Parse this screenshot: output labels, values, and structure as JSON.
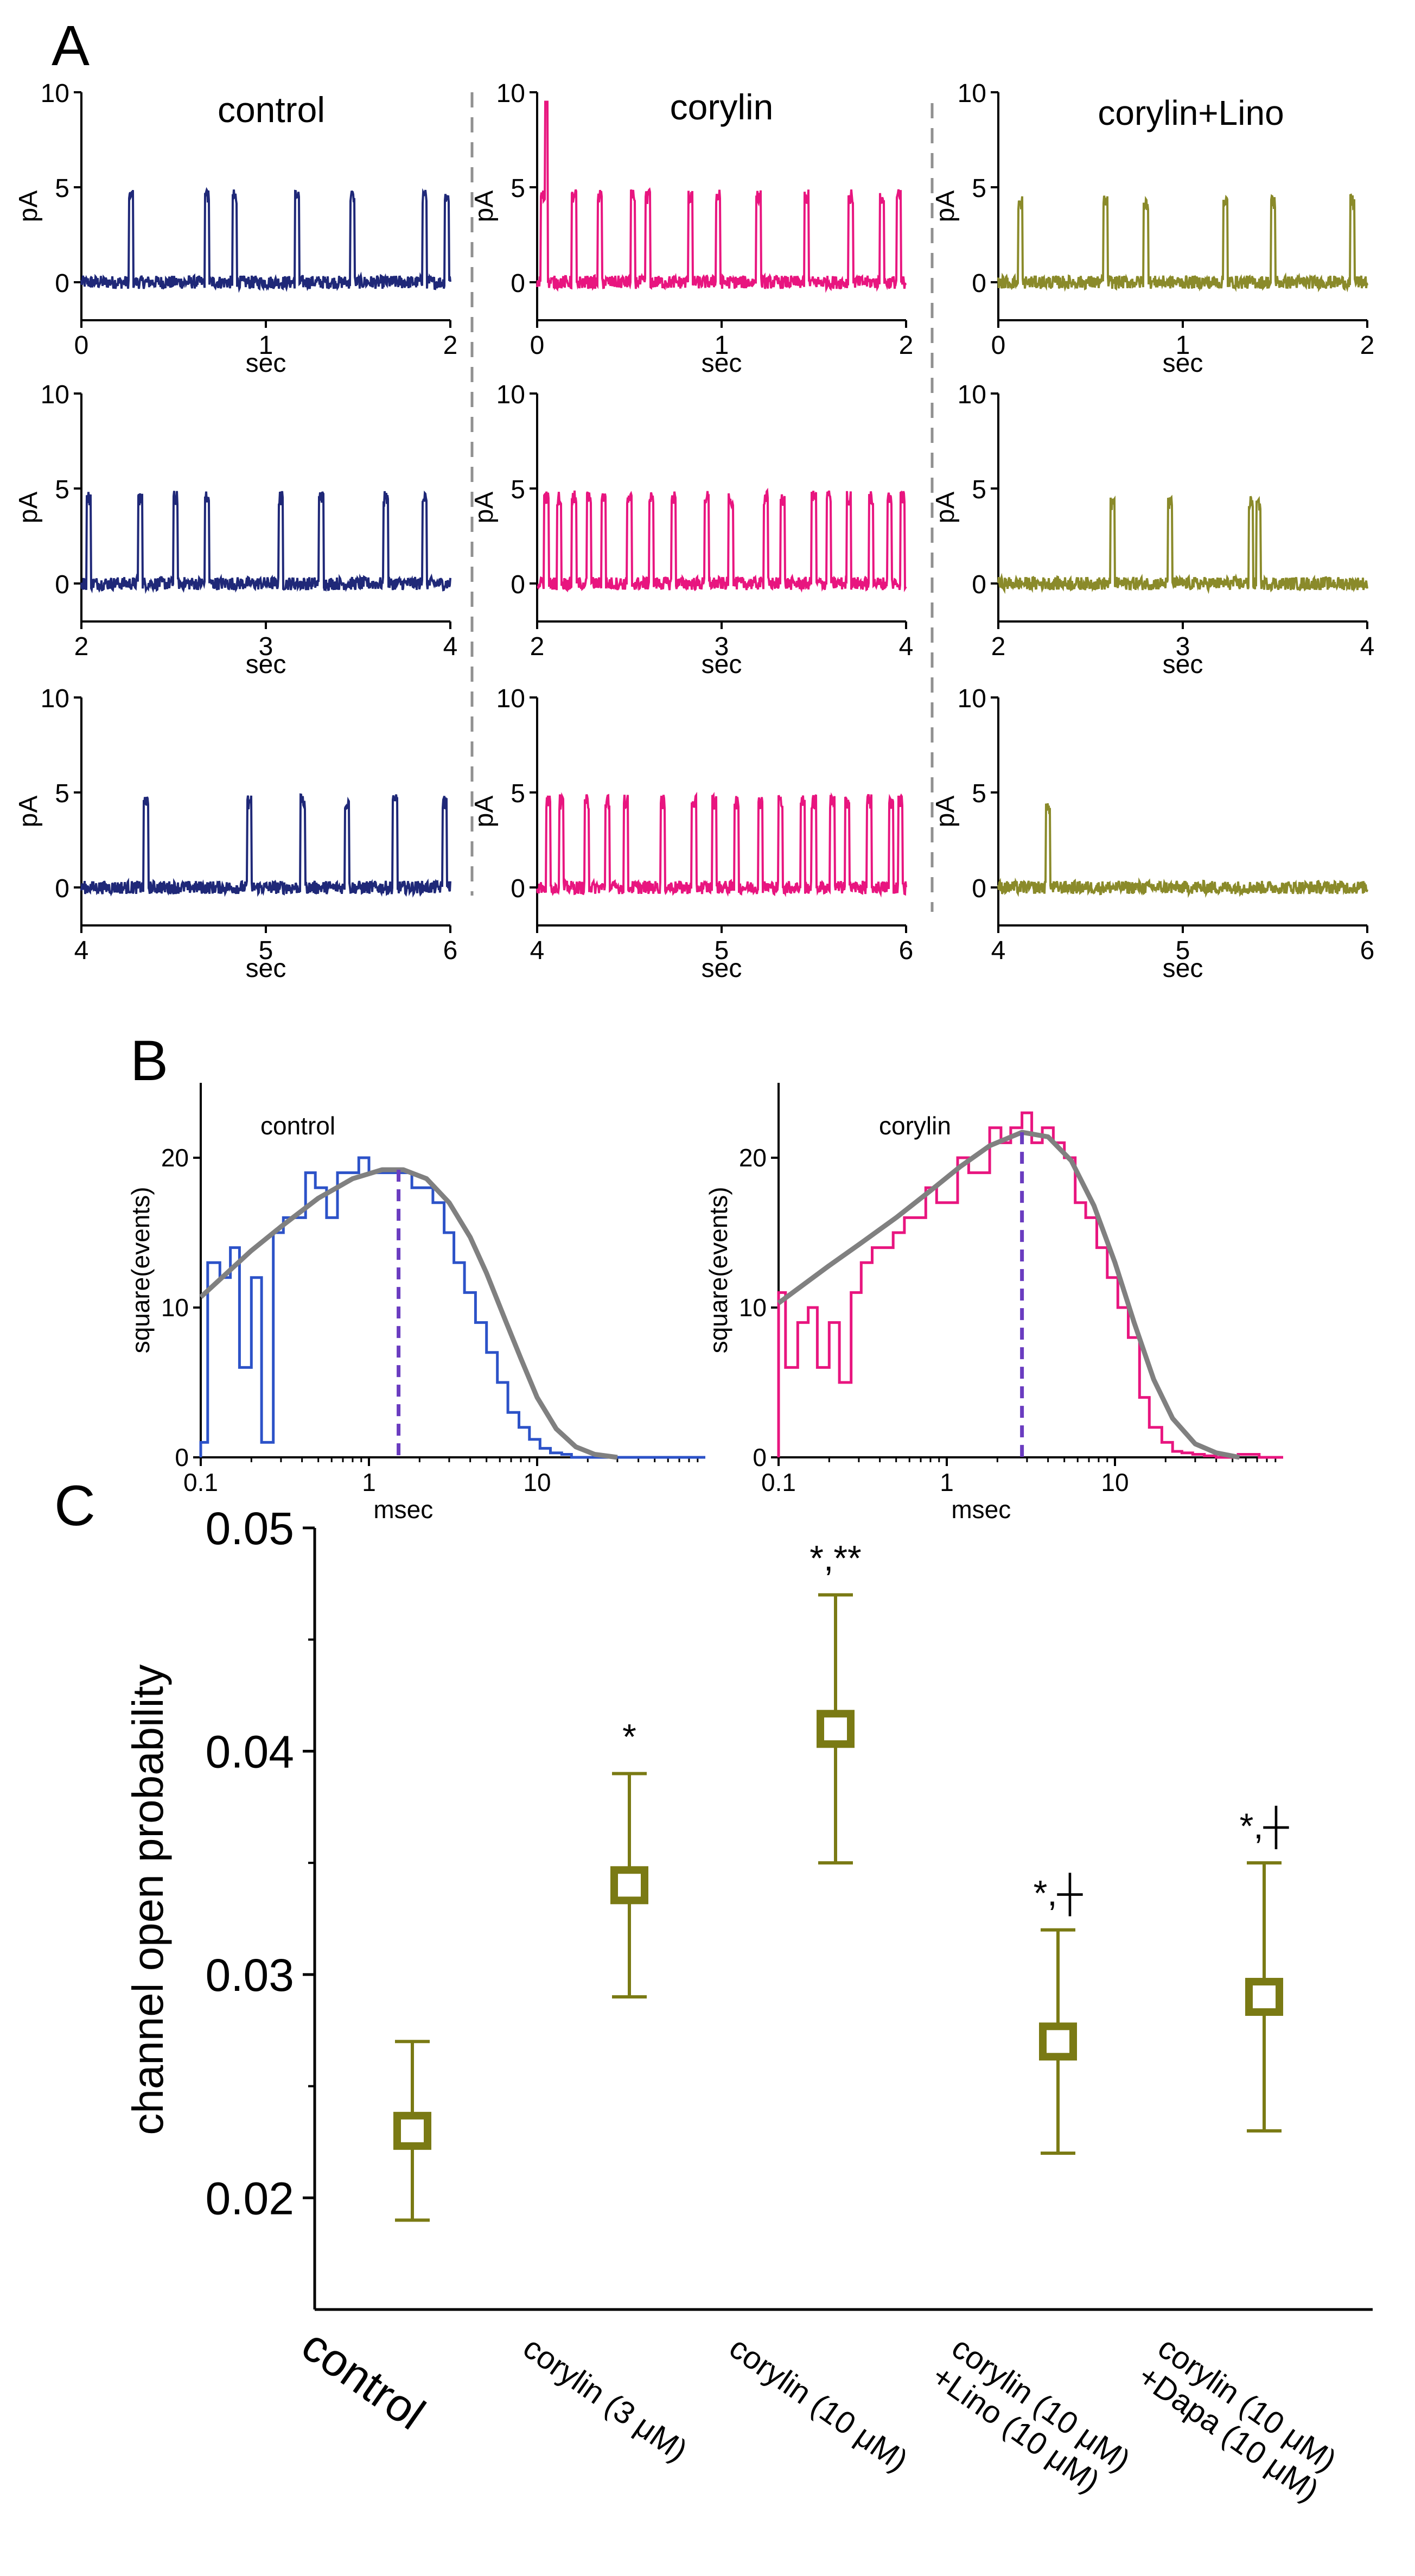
{
  "panel_labels": {
    "a": "A",
    "b": "B",
    "c": "C"
  },
  "colors": {
    "control": "#1f2878",
    "corylin": "#e8157f",
    "corylin_lino": "#8a8a2a",
    "hist_control": "#2c52c8",
    "hist_corylin": "#e8157f",
    "fit": "#808080",
    "median": "#6a3cc0",
    "box": "#7a7a14",
    "divider": "#909090"
  },
  "panel_a": {
    "column_titles": [
      "control",
      "corylin",
      "corylin+Lino"
    ],
    "ylabel": "pA",
    "xlabel": "sec",
    "yticks": [
      "0",
      "5",
      "10"
    ],
    "rows": [
      {
        "xticks": [
          "0",
          "1",
          "2"
        ]
      },
      {
        "xticks": [
          "2",
          "3",
          "4"
        ]
      },
      {
        "xticks": [
          "4",
          "5",
          "6"
        ]
      }
    ]
  },
  "panel_b": {
    "ylabel": "square(events)",
    "xlabel": "msec",
    "xticks": [
      "0.1",
      "1",
      "10"
    ],
    "yticks": [
      "0",
      "10",
      "20"
    ],
    "plots": [
      {
        "label": "control",
        "median_msec": 1.5
      },
      {
        "label": "corylin",
        "median_msec": 2.8
      }
    ]
  },
  "chart_data": [
    {
      "type": "line",
      "panel": "A",
      "title": "control",
      "xlabel": "sec",
      "ylabel": "pA",
      "xlim": [
        0,
        6
      ],
      "ylim": [
        -2,
        10
      ],
      "baseline_pA": 0,
      "opening_amplitude_pA": 4.5,
      "openings_sec": [
        0.27,
        0.68,
        0.83,
        1.17,
        1.47,
        1.86,
        1.98,
        2.04,
        2.32,
        2.51,
        2.68,
        3.08,
        3.3,
        3.65,
        3.86,
        4.35,
        4.91,
        5.2,
        5.44,
        5.7,
        5.97
      ]
    },
    {
      "type": "line",
      "panel": "A",
      "title": "corylin",
      "xlabel": "sec",
      "ylabel": "pA",
      "xlim": [
        0,
        6
      ],
      "ylim": [
        -2,
        10
      ],
      "baseline_pA": 0,
      "opening_amplitude_pA": 4.5,
      "peak_pA": 9.5,
      "openings_sec": [
        0.03,
        0.2,
        0.34,
        0.52,
        0.6,
        0.83,
        0.98,
        1.2,
        1.46,
        1.7,
        1.87,
        1.96,
        2.05,
        2.12,
        2.2,
        2.28,
        2.36,
        2.5,
        2.62,
        2.74,
        2.92,
        3.05,
        3.24,
        3.33,
        3.5,
        3.58,
        3.69,
        3.81,
        3.91,
        3.98,
        4.06,
        4.13,
        4.27,
        4.38,
        4.48,
        4.68,
        4.85,
        4.96,
        5.08,
        5.21,
        5.32,
        5.44,
        5.5,
        5.6,
        5.68,
        5.8,
        5.92,
        5.97
      ]
    },
    {
      "type": "line",
      "panel": "A",
      "title": "corylin+Lino",
      "xlabel": "sec",
      "ylabel": "pA",
      "xlim": [
        0,
        6
      ],
      "ylim": [
        -2,
        10
      ],
      "baseline_pA": 0,
      "opening_amplitude_pA": 4.2,
      "openings_sec": [
        0.12,
        0.58,
        0.8,
        1.23,
        1.49,
        1.92,
        2.62,
        2.93,
        3.37,
        3.41,
        4.27
      ]
    },
    {
      "type": "line",
      "panel": "B",
      "title": "control",
      "xlabel": "msec",
      "ylabel": "square(events)",
      "xscale": "log",
      "xlim": [
        0.1,
        100
      ],
      "ylim": [
        0,
        25
      ],
      "histogram_x": [
        0.1,
        0.11,
        0.13,
        0.15,
        0.17,
        0.2,
        0.23,
        0.27,
        0.31,
        0.36,
        0.42,
        0.48,
        0.56,
        0.65,
        0.75,
        0.87,
        1,
        1.16,
        1.35,
        1.56,
        1.8,
        2.1,
        2.4,
        2.8,
        3.2,
        3.7,
        4.3,
        5,
        5.8,
        6.7,
        7.8,
        9,
        10.4,
        12,
        14,
        16,
        19,
        22,
        25,
        29,
        34,
        40,
        46,
        54,
        62,
        72,
        84,
        97
      ],
      "histogram_y": [
        1,
        13,
        12,
        14,
        6,
        12,
        1,
        15,
        16,
        16,
        19,
        18,
        16,
        19,
        19,
        20,
        19,
        19,
        19,
        19,
        18,
        18,
        17,
        15,
        13,
        11,
        9,
        7,
        5,
        3,
        2,
        1.2,
        0.6,
        0.3,
        0.2,
        0,
        0,
        0,
        0,
        0,
        0,
        0,
        0,
        0,
        0,
        0,
        0,
        0
      ],
      "fit_x": [
        0.1,
        0.2,
        0.3,
        0.5,
        0.8,
        1.2,
        1.6,
        2.2,
        3,
        4,
        5,
        6.5,
        8,
        10,
        13,
        17,
        22,
        30
      ],
      "fit_y": [
        10.7,
        13.8,
        15.4,
        17.3,
        18.6,
        19.2,
        19.2,
        18.6,
        17,
        14.7,
        12.3,
        9.1,
        6.6,
        4,
        1.9,
        0.7,
        0.2,
        0
      ],
      "median_msec": 1.5
    },
    {
      "type": "line",
      "panel": "B",
      "title": "corylin",
      "xlabel": "msec",
      "ylabel": "square(events)",
      "xscale": "log",
      "xlim": [
        0.1,
        100
      ],
      "ylim": [
        0,
        25
      ],
      "histogram_x": [
        0.1,
        0.11,
        0.13,
        0.15,
        0.17,
        0.2,
        0.23,
        0.27,
        0.31,
        0.36,
        0.42,
        0.48,
        0.56,
        0.65,
        0.75,
        0.87,
        1,
        1.16,
        1.35,
        1.56,
        1.8,
        2.1,
        2.4,
        2.8,
        3.2,
        3.7,
        4.3,
        5,
        5.8,
        6.7,
        7.8,
        9,
        10.4,
        12,
        14,
        16,
        19,
        22,
        25,
        29,
        34,
        40,
        46,
        54,
        62,
        72,
        84,
        97
      ],
      "histogram_y": [
        11,
        6,
        9,
        10,
        6,
        9,
        5,
        11,
        13,
        14,
        14,
        15,
        16,
        16,
        18,
        17,
        17,
        20,
        19,
        19,
        22,
        21,
        22,
        23,
        21,
        22,
        21,
        20,
        17,
        16,
        14,
        12,
        10,
        8,
        4,
        2,
        1,
        0.4,
        0.3,
        0.2,
        0.1,
        0,
        0,
        0.2,
        0.2,
        0,
        0,
        0
      ],
      "fit_x": [
        0.1,
        0.2,
        0.3,
        0.5,
        0.8,
        1.2,
        1.8,
        2.8,
        4,
        5.5,
        7.5,
        10,
        13,
        17,
        22,
        30,
        40,
        55
      ],
      "fit_y": [
        10.3,
        12.8,
        14.2,
        16,
        17.8,
        19.4,
        20.8,
        21.7,
        21.4,
        19.8,
        16.8,
        13,
        9,
        5.2,
        2.6,
        0.9,
        0.3,
        0
      ],
      "median_msec": 2.8
    },
    {
      "type": "scatter",
      "panel": "C",
      "ylabel": "channel open probability",
      "ylim": [
        0.015,
        0.05
      ],
      "yticks": [
        "0.02",
        "0.03",
        "0.04",
        "0.05"
      ],
      "categories": [
        "control",
        "corylin (3 μM)",
        "corylin (10 μM)",
        "corylin (10 μM)\n+Lino (10 μM)",
        "corylin (10 μM)\n+Dapa (10 μM)"
      ],
      "values": [
        0.023,
        0.034,
        0.041,
        0.027,
        0.029
      ],
      "error_low": [
        0.019,
        0.029,
        0.035,
        0.022,
        0.023
      ],
      "error_high": [
        0.027,
        0.039,
        0.047,
        0.032,
        0.035
      ],
      "annotations": [
        "",
        "*",
        "*,**",
        "*,┼",
        "*,┼"
      ]
    }
  ]
}
